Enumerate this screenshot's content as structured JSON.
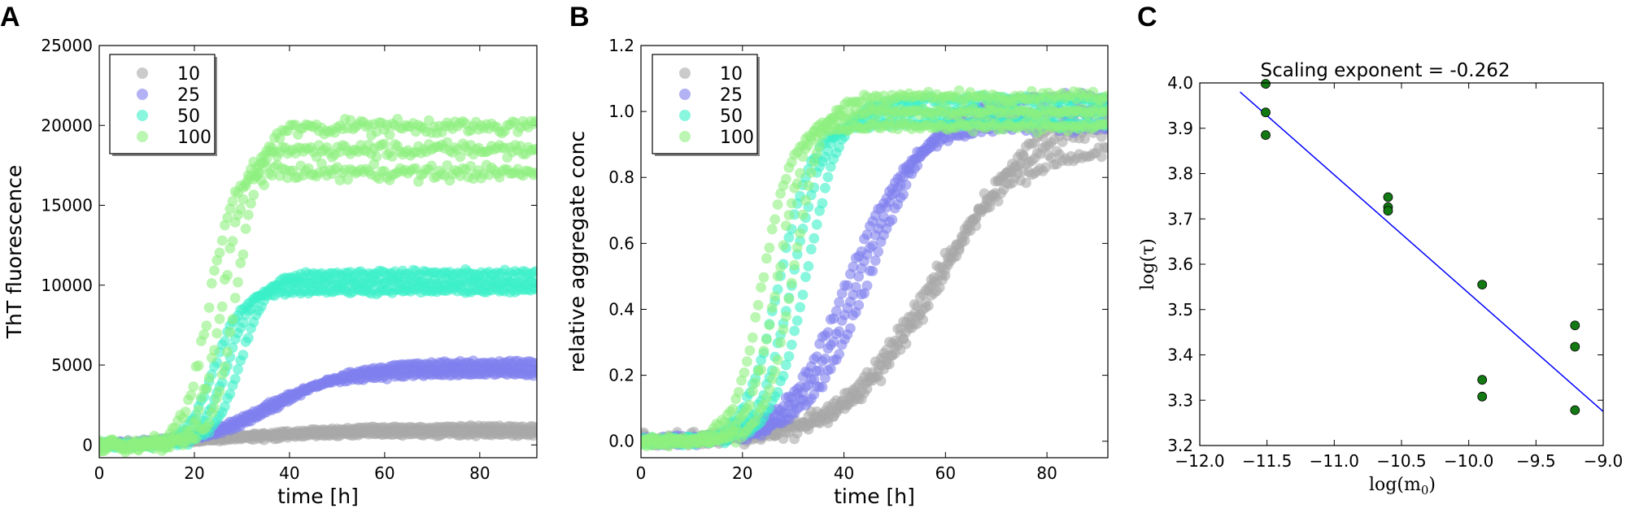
{
  "chart_data": [
    {
      "panel": "A",
      "type": "scatter",
      "xlabel": "time [h]",
      "ylabel": "ThT fluorescence",
      "xlim": [
        0,
        92
      ],
      "ylim": [
        -800,
        25000
      ],
      "xticks": [
        "0",
        "20",
        "40",
        "60",
        "80"
      ],
      "yticks": [
        "0",
        "5000",
        "10000",
        "15000",
        "20000",
        "25000"
      ],
      "legend_position": "top-left",
      "series": [
        {
          "name": "10",
          "color": "#a9a9a9",
          "plateau": 900,
          "lag": 28,
          "slope": 0.1,
          "replicates": 3,
          "spread": 250
        },
        {
          "name": "25",
          "color": "#7f7fee",
          "plateau": 4800,
          "lag": 36,
          "slope": 0.13,
          "replicates": 3,
          "spread": 400
        },
        {
          "name": "50",
          "color": "#3bf0c8",
          "plateau": 10200,
          "lag": 27,
          "slope": 0.35,
          "replicates": 3,
          "spread": 600
        },
        {
          "name": "100",
          "color": "#8ef07e",
          "plateau": 18500,
          "lag": 26,
          "slope": 0.4,
          "replicates": 3,
          "spread": 1600
        }
      ]
    },
    {
      "panel": "B",
      "type": "scatter",
      "xlabel": "time [h]",
      "ylabel": "relative aggregate conc",
      "xlim": [
        0,
        92
      ],
      "ylim": [
        -0.05,
        1.2
      ],
      "xticks": [
        "0",
        "20",
        "40",
        "60",
        "80"
      ],
      "yticks": [
        "0.0",
        "0.2",
        "0.4",
        "0.6",
        "0.8",
        "1.0",
        "1.2"
      ],
      "legend_position": "top-left",
      "series": [
        {
          "name": "10",
          "color": "#a9a9a9",
          "plateau": 0.97,
          "lag": 58,
          "slope": 0.11,
          "replicates": 3,
          "spread": 0.08
        },
        {
          "name": "25",
          "color": "#7f7fee",
          "plateau": 1.0,
          "lag": 43,
          "slope": 0.16,
          "replicates": 3,
          "spread": 0.05
        },
        {
          "name": "50",
          "color": "#3bf0c8",
          "plateau": 1.0,
          "lag": 30,
          "slope": 0.3,
          "replicates": 3,
          "spread": 0.04
        },
        {
          "name": "100",
          "color": "#8ef07e",
          "plateau": 1.0,
          "lag": 27,
          "slope": 0.36,
          "replicates": 3,
          "spread": 0.05
        }
      ]
    },
    {
      "panel": "C",
      "type": "scatter",
      "title": "Scaling exponent = -0.262",
      "xlabel": "log(m",
      "xlabel_sub": "0",
      "xlabel_close": ")",
      "ylabel": "log(τ)",
      "xlim": [
        -12.0,
        -9.0
      ],
      "ylim": [
        3.2,
        4.0
      ],
      "xticks": [
        "−12.0",
        "−11.5",
        "−11.0",
        "−10.5",
        "−10.0",
        "−9.5",
        "−9.0"
      ],
      "yticks": [
        "3.2",
        "3.3",
        "3.4",
        "3.5",
        "3.6",
        "3.7",
        "3.8",
        "3.9",
        "4.0"
      ],
      "points": {
        "color": "#137a13",
        "x": [
          -11.51,
          -11.51,
          -11.51,
          -10.6,
          -10.6,
          -10.6,
          -9.9,
          -9.9,
          -9.9,
          -9.21,
          -9.21,
          -9.21
        ],
        "y": [
          3.998,
          3.935,
          3.885,
          3.748,
          3.726,
          3.718,
          3.555,
          3.345,
          3.308,
          3.465,
          3.418,
          3.278
        ]
      },
      "fit": {
        "color": "#0000ff",
        "x": [
          -11.7,
          -9.0
        ],
        "y": [
          3.98,
          3.275
        ]
      }
    }
  ]
}
